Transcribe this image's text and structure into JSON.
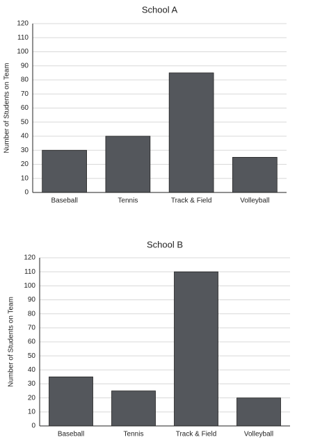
{
  "chart_data": [
    {
      "type": "bar",
      "title": "School A",
      "ylabel": "Number of Students on Team",
      "categories": [
        "Baseball",
        "Tennis",
        "Track & Field",
        "Volleyball"
      ],
      "values": [
        30,
        40,
        85,
        25
      ],
      "color": "#54575c",
      "ylim": [
        0,
        120
      ],
      "yticks": [
        0,
        10,
        20,
        30,
        40,
        50,
        60,
        70,
        80,
        90,
        100,
        110,
        120
      ],
      "grid": true
    },
    {
      "type": "bar",
      "title": "School B",
      "ylabel": "Number of Students on Team",
      "categories": [
        "Baseball",
        "Tennis",
        "Track & Field",
        "Volleyball"
      ],
      "values": [
        35,
        25,
        110,
        20
      ],
      "color": "#54575c",
      "ylim": [
        0,
        120
      ],
      "yticks": [
        0,
        10,
        20,
        30,
        40,
        50,
        60,
        70,
        80,
        90,
        100,
        110,
        120
      ],
      "grid": true
    }
  ]
}
